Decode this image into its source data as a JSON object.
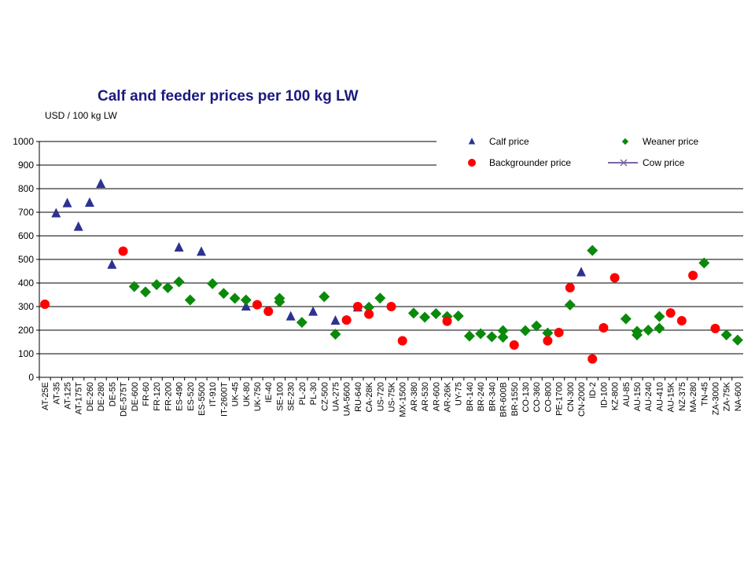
{
  "chart_data": {
    "type": "scatter",
    "title": "Calf and feeder prices per 100 kg LW",
    "ylabel": "USD / 100 kg LW",
    "ylim": [
      0,
      1000
    ],
    "yticks": [
      0,
      100,
      200,
      300,
      400,
      500,
      600,
      700,
      800,
      900,
      1000
    ],
    "grid": true,
    "legend_position": "top-right",
    "legend": [
      {
        "name": "Calf price",
        "marker": "triangle",
        "color": "#2e3192"
      },
      {
        "name": "Weaner price",
        "marker": "diamond",
        "color": "#0a8a0a"
      },
      {
        "name": "Backgrounder price",
        "marker": "circle",
        "color": "#ff0000"
      },
      {
        "name": "Cow price",
        "marker": "line-x",
        "color": "#8064a2"
      }
    ],
    "categories": [
      "AT-25E",
      "AT-35",
      "AT-125",
      "AT-175T",
      "DE-260",
      "DE-280",
      "DE-55",
      "DE-575T",
      "DE-600",
      "FR-60",
      "FR-120",
      "FR-200",
      "ES-490",
      "ES-520",
      "ES-5500",
      "IT-910",
      "IT-2600T",
      "UK-45",
      "UK-80",
      "UK-750",
      "IE-40",
      "SE-100",
      "SE-230",
      "PL-20",
      "PL-30",
      "CZ-500",
      "UA-275",
      "UA-5600",
      "RU-640",
      "CA-28K",
      "US-720",
      "US-75K",
      "MX-1500",
      "AR-380",
      "AR-530",
      "AR-600",
      "AR-26K",
      "UY-75",
      "BR-140",
      "BR-240",
      "BR-340",
      "BR-600B",
      "BR-1550",
      "CO-130",
      "CO-360",
      "CO-800",
      "PE-1700",
      "CN-300",
      "CN-2000",
      "ID-2",
      "ID-100",
      "KZ-800",
      "AU-85",
      "AU-150",
      "AU-240",
      "AU-410",
      "AU-15K",
      "NZ-375",
      "MA-280",
      "TN-45",
      "ZA-3000",
      "ZA-75K",
      "NA-600"
    ],
    "series": [
      {
        "name": "Calf price",
        "points": [
          {
            "x": "AT-35",
            "y": 695
          },
          {
            "x": "AT-125",
            "y": 738
          },
          {
            "x": "AT-175T",
            "y": 638
          },
          {
            "x": "DE-260",
            "y": 740
          },
          {
            "x": "DE-280",
            "y": 820
          },
          {
            "x": "DE-55",
            "y": 477
          },
          {
            "x": "ES-490",
            "y": 550
          },
          {
            "x": "ES-5500",
            "y": 532
          },
          {
            "x": "UK-80",
            "y": 300
          },
          {
            "x": "SE-230",
            "y": 258
          },
          {
            "x": "PL-30",
            "y": 278
          },
          {
            "x": "UA-275",
            "y": 240
          },
          {
            "x": "RU-640",
            "y": 296
          },
          {
            "x": "CN-2000",
            "y": 445
          }
        ]
      },
      {
        "name": "Weaner price",
        "points": [
          {
            "x": "DE-600",
            "y": 385
          },
          {
            "x": "FR-60",
            "y": 362
          },
          {
            "x": "FR-120",
            "y": 393
          },
          {
            "x": "FR-200",
            "y": 380
          },
          {
            "x": "ES-490",
            "y": 405
          },
          {
            "x": "ES-520",
            "y": 328
          },
          {
            "x": "IT-910",
            "y": 397
          },
          {
            "x": "IT-2600T",
            "y": 356
          },
          {
            "x": "UK-45",
            "y": 335
          },
          {
            "x": "UK-80",
            "y": 328
          },
          {
            "x": "SE-100",
            "y": 320
          },
          {
            "x": "SE-100",
            "y": 335
          },
          {
            "x": "PL-20",
            "y": 233
          },
          {
            "x": "CZ-500",
            "y": 342
          },
          {
            "x": "UA-275",
            "y": 183
          },
          {
            "x": "CA-28K",
            "y": 297
          },
          {
            "x": "US-720",
            "y": 336
          },
          {
            "x": "AR-380",
            "y": 272
          },
          {
            "x": "AR-530",
            "y": 255
          },
          {
            "x": "AR-600",
            "y": 270
          },
          {
            "x": "AR-26K",
            "y": 258
          },
          {
            "x": "UY-75",
            "y": 260
          },
          {
            "x": "BR-140",
            "y": 175
          },
          {
            "x": "BR-240",
            "y": 185
          },
          {
            "x": "BR-340",
            "y": 172
          },
          {
            "x": "BR-600B",
            "y": 170
          },
          {
            "x": "BR-600B",
            "y": 198
          },
          {
            "x": "CO-130",
            "y": 198
          },
          {
            "x": "CO-360",
            "y": 218
          },
          {
            "x": "CO-800",
            "y": 188
          },
          {
            "x": "CN-300",
            "y": 307
          },
          {
            "x": "ID-2",
            "y": 538
          },
          {
            "x": "AU-85",
            "y": 248
          },
          {
            "x": "AU-150",
            "y": 195
          },
          {
            "x": "AU-150",
            "y": 180
          },
          {
            "x": "AU-240",
            "y": 200
          },
          {
            "x": "AU-410",
            "y": 208
          },
          {
            "x": "AU-410",
            "y": 258
          },
          {
            "x": "TN-45",
            "y": 485
          },
          {
            "x": "ZA-75K",
            "y": 180
          },
          {
            "x": "NA-600",
            "y": 158
          }
        ]
      },
      {
        "name": "Backgrounder price",
        "points": [
          {
            "x": "AT-25E",
            "y": 310
          },
          {
            "x": "DE-575T",
            "y": 535
          },
          {
            "x": "UK-750",
            "y": 308
          },
          {
            "x": "IE-40",
            "y": 280
          },
          {
            "x": "UA-5600",
            "y": 243
          },
          {
            "x": "RU-640",
            "y": 300
          },
          {
            "x": "CA-28K",
            "y": 268
          },
          {
            "x": "US-75K",
            "y": 300
          },
          {
            "x": "MX-1500",
            "y": 155
          },
          {
            "x": "AR-26K",
            "y": 238
          },
          {
            "x": "BR-1550",
            "y": 137
          },
          {
            "x": "CO-800",
            "y": 155
          },
          {
            "x": "PE-1700",
            "y": 190
          },
          {
            "x": "CN-300",
            "y": 380
          },
          {
            "x": "ID-2",
            "y": 78
          },
          {
            "x": "ID-100",
            "y": 210
          },
          {
            "x": "KZ-800",
            "y": 422
          },
          {
            "x": "AU-15K",
            "y": 273
          },
          {
            "x": "NZ-375",
            "y": 240
          },
          {
            "x": "MA-280",
            "y": 432
          },
          {
            "x": "ZA-3000",
            "y": 207
          }
        ]
      },
      {
        "name": "Cow price",
        "points": []
      }
    ]
  }
}
